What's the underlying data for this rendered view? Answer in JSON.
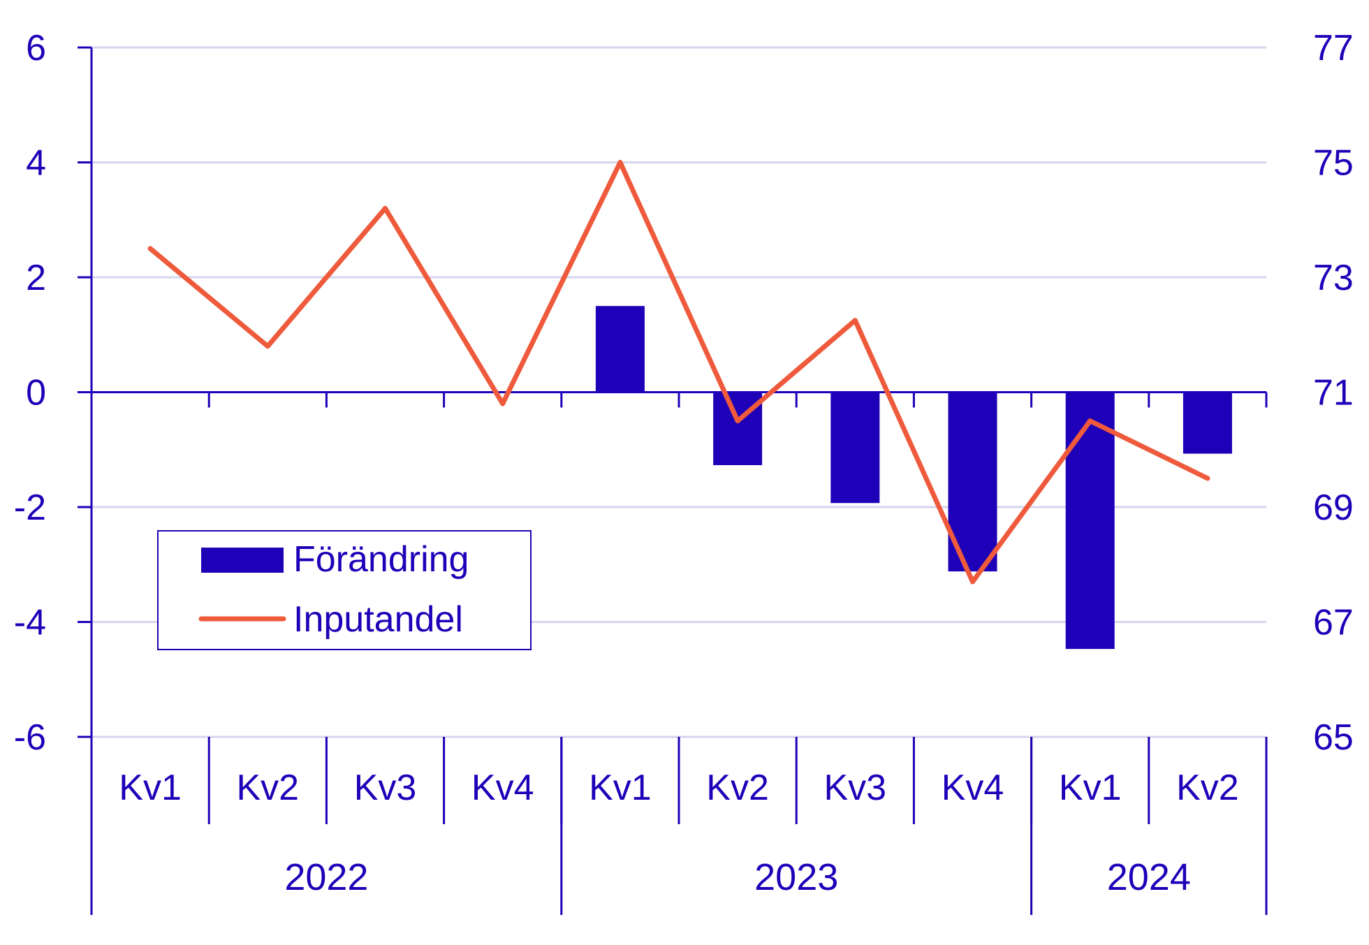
{
  "chart_data": {
    "type": "bar",
    "categories": [
      "Kv1",
      "Kv2",
      "Kv3",
      "Kv4",
      "Kv1",
      "Kv2",
      "Kv3",
      "Kv4",
      "Kv1",
      "Kv2"
    ],
    "groups": [
      {
        "label": "2022",
        "count": 4
      },
      {
        "label": "2023",
        "count": 4
      },
      {
        "label": "2024",
        "count": 2
      }
    ],
    "series": [
      {
        "name": "Förändring",
        "type": "bar",
        "axis": "left",
        "values": [
          0,
          0,
          0,
          0,
          1.5,
          -1.27,
          -1.93,
          -3.12,
          -4.47,
          -1.07
        ]
      },
      {
        "name": "Inputandel",
        "type": "line",
        "axis": "right",
        "values": [
          73.5,
          71.8,
          74.2,
          70.8,
          75.0,
          70.5,
          72.25,
          67.7,
          70.5,
          69.5
        ]
      }
    ],
    "left_axis": {
      "ylim": [
        -6,
        6
      ],
      "ticks": [
        "6",
        "4",
        "2",
        "0",
        "-2",
        "-4",
        "-6"
      ]
    },
    "right_axis": {
      "ylim": [
        65,
        77
      ],
      "ticks": [
        "77",
        "75",
        "73",
        "71",
        "69",
        "67",
        "65"
      ]
    },
    "grid": true,
    "legend_position": "bottom-left",
    "colors": {
      "bar": "#1d00b8",
      "line": "#ee5a3b",
      "grid": "#d5d5ee",
      "axis": "#1d00b8"
    }
  }
}
